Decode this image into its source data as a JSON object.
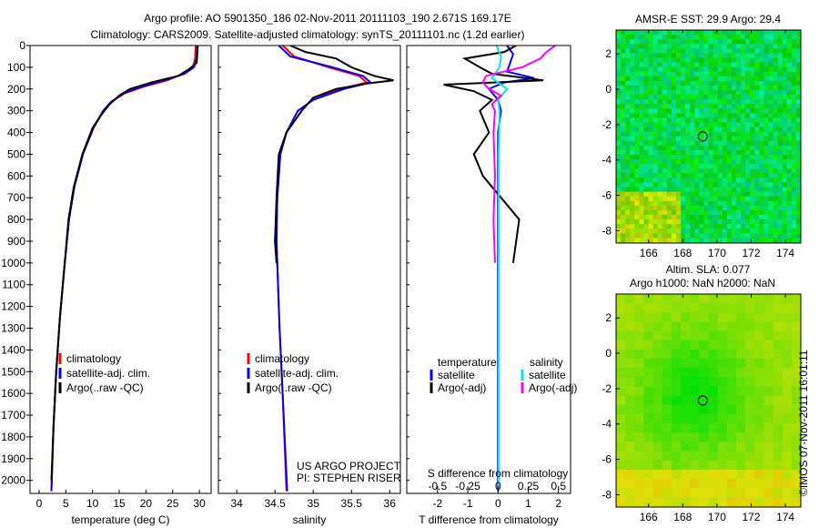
{
  "title_line1": "Argo profile: AO 5901350_186 02-Nov-2011 20111103_190 2.671S 169.17E",
  "title_line2": "Climatology: CARS2009. Satellite-adjusted climatology: synTS_20111101.nc (1.2d earlier)",
  "footer_stamp": "©IMOS 07-Nov-2011 16:01:11",
  "chart_data": [
    {
      "type": "line",
      "title": "",
      "xlabel": "temperature (deg C)",
      "ylabel": "",
      "xlim": [
        -1.7,
        32.2
      ],
      "ylim": [
        0,
        2060
      ],
      "xticks": [
        0,
        5,
        10,
        15,
        20,
        25,
        30
      ],
      "yticks": [
        0,
        100,
        200,
        300,
        400,
        500,
        600,
        700,
        800,
        900,
        1000,
        1100,
        1200,
        1300,
        1400,
        1500,
        1600,
        1700,
        1800,
        1900,
        2000
      ],
      "legend": [
        "climatology",
        "satellite-adj. clim.",
        "Argo(..raw -QC)"
      ],
      "legend_placement": "lower-right",
      "series": [
        {
          "name": "climatology",
          "color": "#ff0000",
          "depth": [
            0,
            60,
            100,
            130,
            160,
            190,
            220,
            260,
            300,
            380,
            500,
            650,
            800,
            1000,
            1250,
            1500,
            1750,
            2050
          ],
          "values": [
            29.3,
            29.2,
            28.8,
            27,
            24,
            19.5,
            16,
            13.5,
            12,
            10.2,
            8.2,
            6.6,
            5.6,
            4.8,
            3.9,
            3.2,
            2.7,
            2.3
          ]
        },
        {
          "name": "satellite-adj. clim.",
          "color": "#0000ff",
          "depth": [
            0,
            60,
            100,
            130,
            160,
            190,
            220,
            260,
            300,
            380,
            500,
            650,
            800,
            1000,
            1250,
            1500,
            1750,
            2050
          ],
          "values": [
            29.6,
            29.5,
            29,
            27.2,
            23.5,
            19,
            15.8,
            13.4,
            12,
            10.1,
            8.2,
            6.6,
            5.6,
            4.8,
            3.9,
            3.2,
            2.7,
            2.3
          ]
        },
        {
          "name": "Argo(..raw -QC)",
          "color": "#000000",
          "depth": [
            0,
            40,
            80,
            110,
            140,
            170,
            200,
            230,
            270,
            320,
            380,
            500,
            650,
            800,
            1000,
            1250,
            1500,
            1750,
            2000
          ],
          "values": [
            29.7,
            29.6,
            29.5,
            28,
            26,
            21,
            17,
            15,
            13.2,
            11.6,
            10,
            8.1,
            6.5,
            5.5,
            4.8,
            3.9,
            3.2,
            2.7,
            2.3
          ]
        }
      ]
    },
    {
      "type": "line",
      "xlabel": "salinity",
      "xlim": [
        33.76,
        36.14
      ],
      "ylim": [
        0,
        2060
      ],
      "xticks": [
        34,
        34.5,
        35,
        35.5,
        36
      ],
      "legend": [
        "climatology",
        "satellite-adj. clim.",
        "Argo(..raw -QC)"
      ],
      "legend_placement": "lower-right",
      "annotation": [
        "US ARGO PROJECT",
        "PI: STEPHEN RISER"
      ],
      "series": [
        {
          "name": "climatology",
          "color": "#ff0000",
          "depth": [
            0,
            50,
            100,
            140,
            170,
            200,
            250,
            300,
            400,
            500,
            700,
            900,
            1000,
            1300,
            1600,
            2050
          ],
          "values": [
            34.6,
            34.75,
            35.2,
            35.6,
            35.7,
            35.35,
            35.0,
            34.8,
            34.65,
            34.57,
            34.53,
            34.52,
            34.53,
            34.56,
            34.6,
            34.65
          ]
        },
        {
          "name": "satellite-adj. clim.",
          "color": "#0000ff",
          "depth": [
            0,
            50,
            100,
            140,
            170,
            200,
            250,
            300,
            400,
            500,
            700,
            900,
            1000,
            1300,
            1600,
            2050
          ],
          "values": [
            34.55,
            34.7,
            35.25,
            35.65,
            35.75,
            35.4,
            35.0,
            34.8,
            34.65,
            34.57,
            34.53,
            34.52,
            34.53,
            34.56,
            34.6,
            34.66
          ]
        },
        {
          "name": "Argo(..raw -QC)",
          "color": "#000000",
          "depth": [
            0,
            30,
            60,
            100,
            140,
            160,
            175,
            200,
            240,
            300,
            400,
            500,
            700,
            900,
            1000
          ],
          "values": [
            34.7,
            34.9,
            35.3,
            35.5,
            35.8,
            36.05,
            35.7,
            35.3,
            35.0,
            34.85,
            34.65,
            34.55,
            34.52,
            34.5,
            34.52
          ]
        }
      ]
    },
    {
      "type": "line",
      "xlabel": "T difference from climatology",
      "x2label": "S difference from climatology",
      "xlim": [
        -3.02,
        2.4
      ],
      "ylim": [
        0,
        2060
      ],
      "xticks": [
        -2,
        -1,
        0,
        1,
        2
      ],
      "x2ticks": [
        -0.5,
        -0.25,
        0,
        0.25,
        0.5
      ],
      "legend_titles": [
        "temperature",
        "salinity"
      ],
      "legend": [
        "satellite",
        "Argo(-adj)",
        "satellite",
        "Argo(-adj)"
      ],
      "legend_placement": "lower-center",
      "series": [
        {
          "name": "temperature satellite",
          "color": "#0000ff",
          "depth": [
            0,
            40,
            80,
            120,
            150,
            170,
            200,
            250,
            300,
            400,
            600,
            1000,
            2050
          ],
          "values": [
            0.3,
            0.5,
            0.4,
            0.3,
            1.2,
            0.2,
            -0.3,
            0,
            0.1,
            0,
            0,
            0,
            0
          ]
        },
        {
          "name": "temperature Argo(-adj)",
          "color": "#000000",
          "depth": [
            0,
            30,
            60,
            100,
            130,
            160,
            180,
            210,
            250,
            300,
            400,
            500,
            600,
            700,
            800,
            900,
            1000
          ],
          "values": [
            0.6,
            0.2,
            -1.1,
            -0.6,
            -0.2,
            1.5,
            -1.8,
            -0.8,
            -0.2,
            -0.6,
            -0.3,
            -0.8,
            -0.5,
            0.1,
            0.7,
            0.6,
            0.5
          ]
        },
        {
          "name": "salinity satellite",
          "color": "#00e5ee",
          "depth": [
            0,
            50,
            100,
            150,
            200,
            250,
            300,
            500,
            1000,
            2050
          ],
          "values": [
            -0.05,
            0.1,
            0.05,
            -0.2,
            0.3,
            0,
            0.05,
            0.02,
            0.02,
            0.02
          ]
        },
        {
          "name": "salinity Argo(-adj)",
          "color": "#ff00ff",
          "depth": [
            0,
            30,
            60,
            100,
            140,
            170,
            200,
            230,
            270,
            300,
            400,
            600,
            800,
            1000
          ],
          "values": [
            1.9,
            1.6,
            1.4,
            0.8,
            -0.4,
            -0.5,
            -0.3,
            0.1,
            -0.2,
            -0.1,
            -0.15,
            -0.1,
            -0.15,
            -0.1
          ]
        }
      ]
    },
    {
      "type": "heatmap",
      "title": "AMSR-E SST: 29.9 Argo: 29.4",
      "xlim": [
        164.1,
        174.9
      ],
      "ylim": [
        -8.7,
        3.35
      ],
      "xticks": [
        166,
        168,
        170,
        172,
        174
      ],
      "yticks": [
        2,
        0,
        -2,
        -4,
        -6,
        -8
      ],
      "marker": {
        "lon": 169.17,
        "lat": -2.671
      }
    },
    {
      "type": "heatmap",
      "title": "Altim. SLA: 0.077",
      "subtitle": "Argo h1000: NaN h2000: NaN",
      "xlim": [
        164.1,
        174.9
      ],
      "ylim": [
        -8.7,
        3.35
      ],
      "xticks": [
        166,
        168,
        170,
        172,
        174
      ],
      "yticks": [
        2,
        0,
        -2,
        -4,
        -6,
        -8
      ],
      "marker": {
        "lon": 169.17,
        "lat": -2.671
      }
    }
  ]
}
